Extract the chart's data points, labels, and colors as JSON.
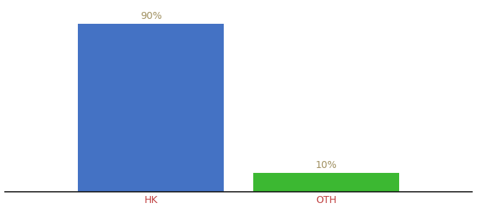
{
  "categories": [
    "HK",
    "OTH"
  ],
  "values": [
    90,
    10
  ],
  "bar_colors": [
    "#4472c4",
    "#3cb832"
  ],
  "label_color": "#a09060",
  "xlabel_color": "#c04040",
  "value_labels": [
    "90%",
    "10%"
  ],
  "background_color": "#ffffff",
  "ylim": [
    0,
    100
  ],
  "bar_width": 0.25,
  "label_fontsize": 10,
  "tick_fontsize": 10,
  "axis_line_color": "#111111",
  "x_positions": [
    0.35,
    0.65
  ]
}
